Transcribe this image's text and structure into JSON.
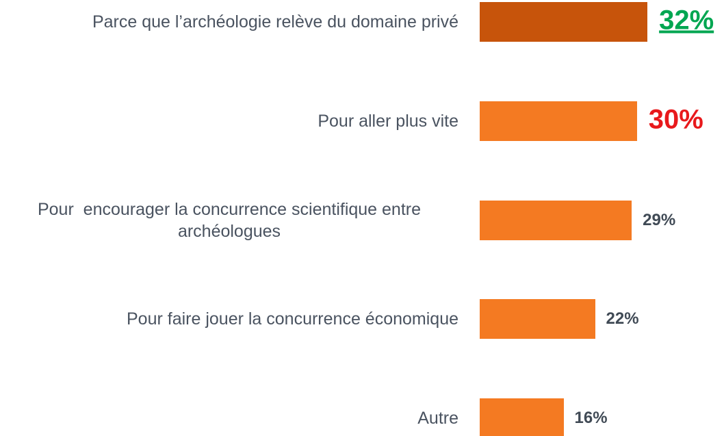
{
  "chart_data": {
    "type": "barh",
    "categories": [
      "Parce que l’archéologie relève du domaine privé",
      "Pour aller plus vite",
      "Pour  encourager la concurrence scientifique entre archéologues",
      "Pour faire jouer la concurrence économique",
      "Autre"
    ],
    "values": [
      32,
      30,
      29,
      22,
      16
    ],
    "value_labels": [
      "32%",
      "30%",
      "29%",
      "22%",
      "16%"
    ],
    "colors": [
      "#c7540b",
      "#f47a22",
      "#f47a22",
      "#f47a22",
      "#f47a22"
    ],
    "value_label_colors": [
      "#00a651",
      "#e8191c",
      "#404a55",
      "#404a55",
      "#404a55"
    ]
  }
}
